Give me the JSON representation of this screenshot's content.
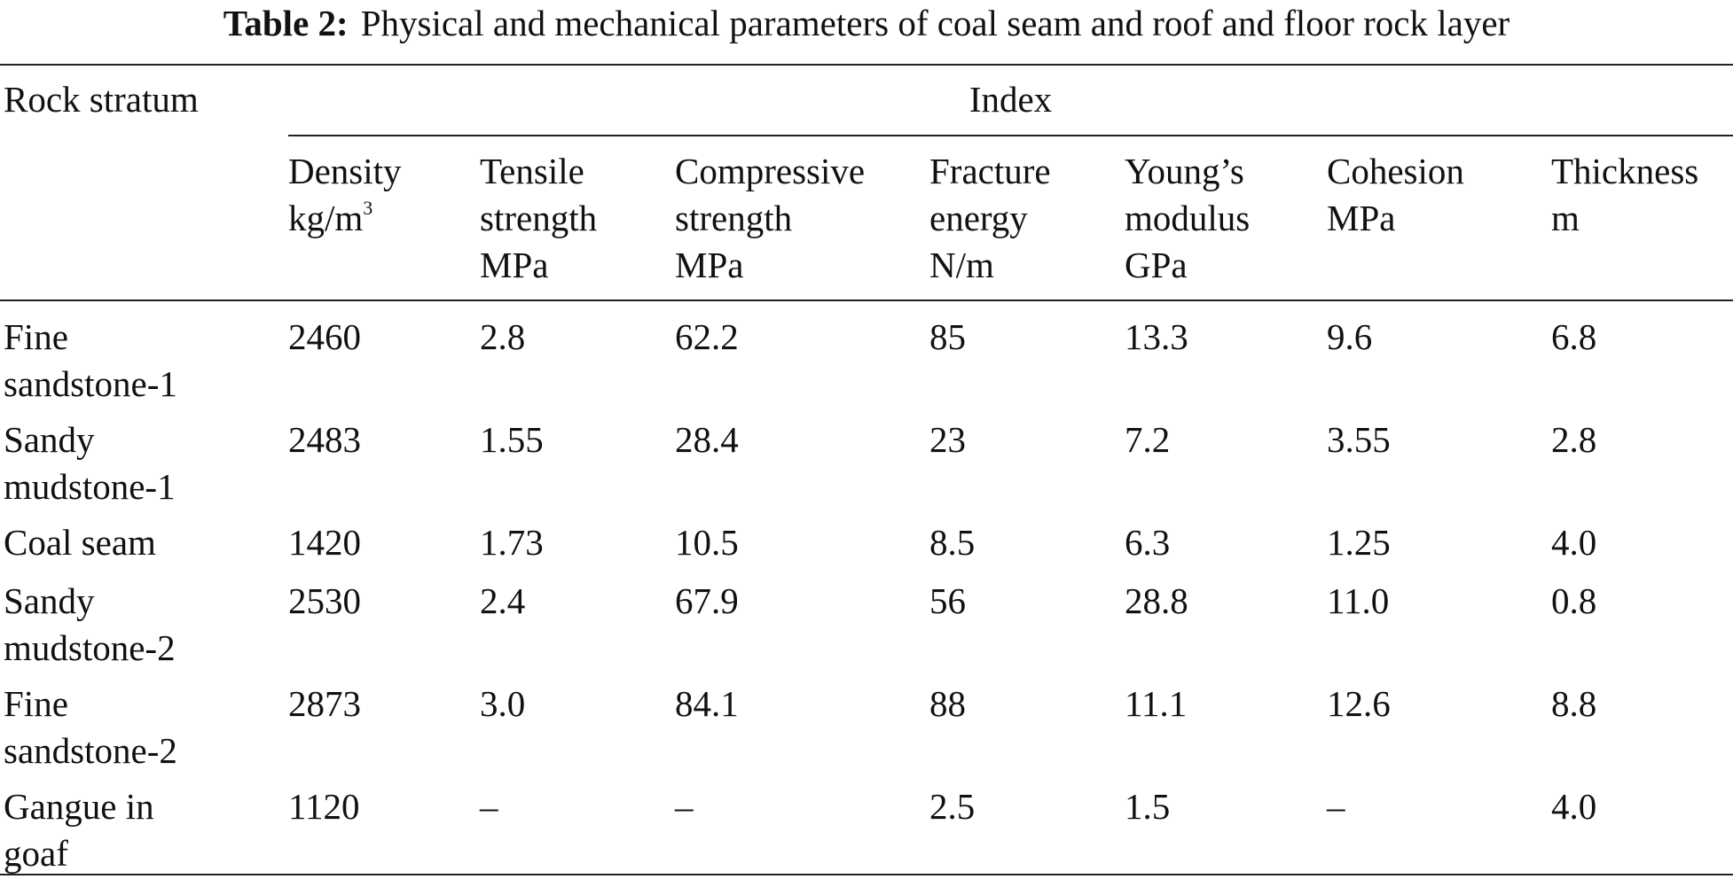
{
  "caption": {
    "label": "Table 2:",
    "text": "Physical and mechanical parameters of coal seam and roof and floor rock layer"
  },
  "header": {
    "row_label": "Rock stratum",
    "group_label": "Index",
    "columns": [
      {
        "lines": [
          "Density",
          "kg/m"
        ],
        "sup": "3"
      },
      {
        "lines": [
          "Tensile",
          "strength",
          "MPa"
        ]
      },
      {
        "lines": [
          "Compressive",
          "strength",
          "MPa"
        ]
      },
      {
        "lines": [
          "Fracture",
          "energy",
          "N/m"
        ]
      },
      {
        "lines": [
          "Young’s",
          "modulus",
          "GPa"
        ]
      },
      {
        "lines": [
          "Cohesion",
          "MPa"
        ]
      },
      {
        "lines": [
          "Thickness",
          "m"
        ]
      }
    ]
  },
  "rows": [
    {
      "label": [
        "Fine",
        "sandstone-1"
      ],
      "values": [
        "2460",
        "2.8",
        "62.2",
        "85",
        "13.3",
        "9.6",
        "6.8"
      ]
    },
    {
      "label": [
        "Sandy",
        "mudstone-1"
      ],
      "values": [
        "2483",
        "1.55",
        "28.4",
        "23",
        "7.2",
        "3.55",
        "2.8"
      ]
    },
    {
      "label": [
        "Coal seam"
      ],
      "values": [
        "1420",
        "1.73",
        "10.5",
        "8.5",
        "6.3",
        "1.25",
        "4.0"
      ]
    },
    {
      "label": [
        "Sandy",
        "mudstone-2"
      ],
      "values": [
        "2530",
        "2.4",
        "67.9",
        "56",
        "28.8",
        "11.0",
        "0.8"
      ]
    },
    {
      "label": [
        "Fine",
        "sandstone-2"
      ],
      "values": [
        "2873",
        "3.0",
        "84.1",
        "88",
        "11.1",
        "12.6",
        "8.8"
      ]
    },
    {
      "label": [
        "Gangue in",
        "goaf"
      ],
      "values": [
        "1120",
        "–",
        "–",
        "2.5",
        "1.5",
        "–",
        "4.0"
      ]
    }
  ]
}
